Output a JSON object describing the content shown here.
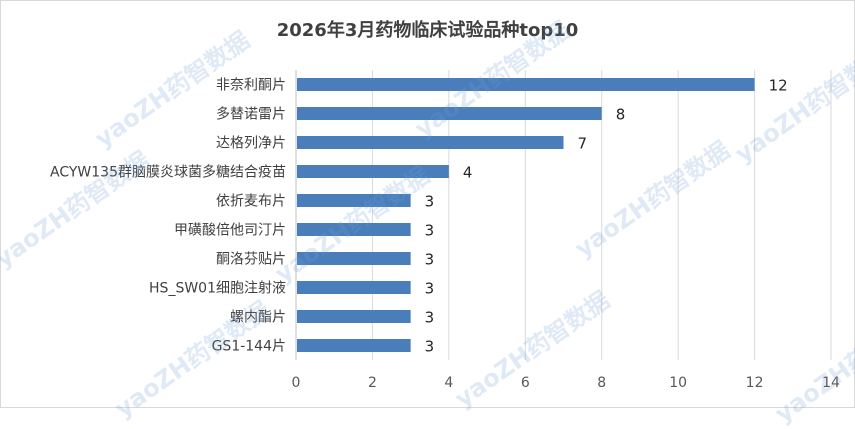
{
  "chart_data": {
    "type": "bar",
    "orientation": "horizontal",
    "title": "2026年3月药物临床试验品种top10",
    "categories": [
      "非奈利酮片",
      "多替诺雷片",
      "达格列净片",
      "ACYW135群脑膜炎球菌多糖结合疫苗",
      "依折麦布片",
      "甲磺酸倍他司汀片",
      "酮洛芬贴片",
      "HS_SW01细胞注射液",
      "螺内酯片",
      "GS1-144片"
    ],
    "values": [
      12,
      8,
      7,
      4,
      3,
      3,
      3,
      3,
      3,
      3
    ],
    "x_ticks": [
      "0",
      "2",
      "4",
      "6",
      "8",
      "10",
      "12",
      "14"
    ],
    "xlim": [
      0,
      14
    ],
    "grid": true,
    "legend": "none",
    "bar_color": "#4a7ebb"
  },
  "watermark": {
    "text": "yaoZH药智数据"
  }
}
